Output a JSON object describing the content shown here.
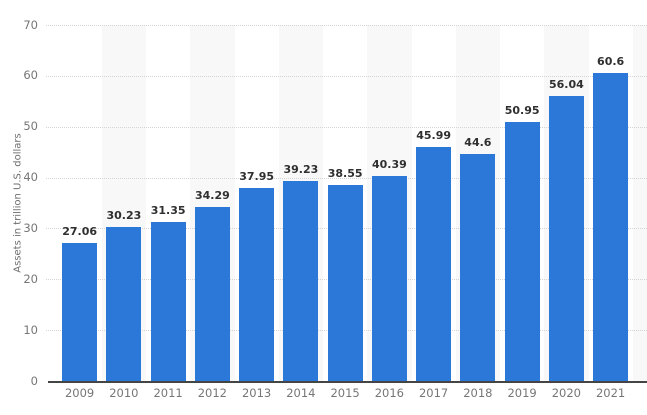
{
  "chart_data": {
    "type": "bar",
    "categories": [
      "2009",
      "2010",
      "2011",
      "2012",
      "2013",
      "2014",
      "2015",
      "2016",
      "2017",
      "2018",
      "2019",
      "2020",
      "2021"
    ],
    "values": [
      27.06,
      30.23,
      31.35,
      34.29,
      37.95,
      39.23,
      38.55,
      40.39,
      45.99,
      44.6,
      50.95,
      56.04,
      60.6
    ],
    "ylabel": "Assets in trillion U.S. dollars",
    "ylim": [
      0,
      70
    ],
    "yticks": [
      0,
      10,
      20,
      30,
      40,
      50,
      60,
      70
    ],
    "grid": "horizontal-dotted",
    "legend": "none",
    "background_bands": "alternating vertical column bands",
    "data_labels": "above bars",
    "colors": {
      "bar": "#2b78d9",
      "band": "#f8f8f8",
      "gridline": "#d4d4d4",
      "axis_line": "#454545",
      "tick_label": "#767676",
      "value_label": "#2f2f2f",
      "y_axis_title": "#6e6e6e",
      "background": "#ffffff"
    }
  }
}
